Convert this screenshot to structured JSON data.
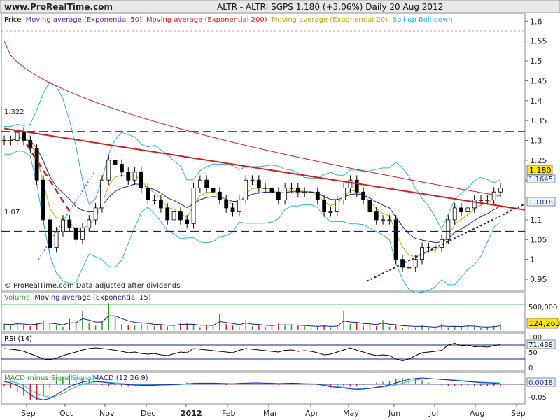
{
  "header": {
    "site": "www.ProRealTime.com",
    "title": "ALTR - ALTRI SGPS    1.180 (+3.06%)    Daily  20 Aug 2012"
  },
  "footer": {
    "credit": "© ProRealTime.com Data adjusted after dividends"
  },
  "colors": {
    "price": "#000000",
    "ema50": "#1a1aa0",
    "ema200": "#d21e1e",
    "ema20": "#c8a800",
    "bollinger": "#22b8d8",
    "volume_up": "#2aa02a",
    "volume_down": "#d22020",
    "rsi": "#000000",
    "macd": "#2020c0"
  },
  "chart_data": [
    {
      "type": "line",
      "title": "",
      "legend": [
        {
          "text": "Price",
          "color": "#000000"
        },
        {
          "text": "Moving average (Exponential 50)",
          "color": "#6a2aa0"
        },
        {
          "text": "Moving average (Exponential 200)",
          "color": "#d21e1e"
        },
        {
          "text": "Moving average (Exponential 20)",
          "color": "#c8a800"
        },
        {
          "text": "Boll up Boll down",
          "color": "#22b8d8"
        }
      ],
      "x_tick_labels": [
        "Sep",
        "Oct",
        "Nov",
        "Dec",
        "2012",
        "Feb",
        "Mar",
        "Apr",
        "May",
        "Jun",
        "Jul",
        "Aug",
        "Sep"
      ],
      "y_tick_labels": [
        "1.6",
        "1.55",
        "1.5",
        "1.45",
        "1.4",
        "1.35",
        "1.3",
        "1.25",
        "1.2",
        "1.15",
        "1.1",
        "1.05",
        "1",
        "0.95"
      ],
      "ylim": [
        0.92,
        1.62
      ],
      "series": [
        {
          "name": "Price",
          "values": [
            1.3,
            1.3,
            1.32,
            1.3,
            1.28,
            1.2,
            1.1,
            1.03,
            1.07,
            1.1,
            1.08,
            1.05,
            1.08,
            1.1,
            1.13,
            1.2,
            1.25,
            1.24,
            1.22,
            1.2,
            1.22,
            1.18,
            1.15,
            1.15,
            1.13,
            1.1,
            1.12,
            1.1,
            1.09,
            1.18,
            1.2,
            1.18,
            1.17,
            1.15,
            1.13,
            1.12,
            1.15,
            1.2,
            1.2,
            1.18,
            1.18,
            1.17,
            1.15,
            1.18,
            1.18,
            1.17,
            1.17,
            1.17,
            1.15,
            1.12,
            1.12,
            1.15,
            1.18,
            1.2,
            1.17,
            1.15,
            1.12,
            1.1,
            1.1,
            1.1,
            1.0,
            0.98,
            0.98,
            1.0,
            1.03,
            1.03,
            1.03,
            1.05,
            1.1,
            1.13,
            1.12,
            1.13,
            1.15,
            1.15,
            1.15,
            1.17,
            1.18
          ],
          "annotations": [
            "1.322",
            "1.07",
            "1.180",
            "1.1645",
            "1.1018"
          ]
        }
      ],
      "last_value_labels": [
        "1.180",
        "1.1645",
        "1.1018"
      ],
      "level_labels": [
        "1.322",
        "1.07"
      ]
    },
    {
      "type": "bar",
      "title": "",
      "legend": [
        {
          "text": "Volume",
          "color": "#2aa02a"
        },
        {
          "text": "Moving average (Exponential 15)",
          "color": "#1a1aa0"
        }
      ],
      "y_tick_labels": [
        "500,000"
      ],
      "last_value": "124,263",
      "ylim": [
        0,
        700000
      ],
      "volumes": [
        120000,
        90000,
        160000,
        110000,
        80000,
        140000,
        190000,
        130000,
        100000,
        70000,
        220000,
        150000,
        380000,
        140000,
        90000,
        160000,
        520000,
        280000,
        120000,
        100000,
        90000,
        130000,
        110000,
        80000,
        100000,
        70000,
        90000,
        150000,
        130000,
        110000,
        60000,
        95000,
        85000,
        320000,
        120000,
        90000,
        70000,
        200000,
        80000,
        100000,
        65000,
        75000,
        130000,
        110000,
        100000,
        90000,
        80000,
        60000,
        70000,
        95000,
        60000,
        90000,
        380000,
        120000,
        140000,
        90000,
        110000,
        80000,
        200000,
        70000,
        90000,
        50000,
        70000,
        60000,
        90000,
        50000,
        40000,
        130000,
        60000,
        80000,
        65000,
        110000,
        70000,
        40000,
        60000,
        85000,
        120000
      ]
    },
    {
      "type": "line",
      "title": "",
      "legend": [
        {
          "text": "RSI (14)",
          "color": "#000000"
        }
      ],
      "y_tick_labels": [
        "100",
        "50",
        "0"
      ],
      "last_value": "71.438",
      "ylim": [
        0,
        100
      ],
      "values": [
        60,
        58,
        56,
        52,
        45,
        38,
        30,
        28,
        32,
        40,
        45,
        50,
        56,
        60,
        62,
        60,
        58,
        55,
        52,
        48,
        50,
        46,
        44,
        46,
        42,
        40,
        45,
        50,
        48,
        60,
        58,
        56,
        54,
        52,
        50,
        48,
        55,
        60,
        58,
        56,
        54,
        52,
        50,
        55,
        56,
        52,
        54,
        52,
        48,
        42,
        44,
        50,
        56,
        62,
        55,
        50,
        44,
        40,
        42,
        40,
        30,
        25,
        30,
        40,
        48,
        50,
        52,
        55,
        70,
        75,
        68,
        70,
        65,
        66,
        64,
        68,
        71.4
      ]
    },
    {
      "type": "line",
      "title": "",
      "legend": [
        {
          "text": "MACD minus Signal",
          "color": "#2aa02a"
        },
        {
          "text": "Signal",
          "color": "#22b8d8"
        },
        {
          "text": "MACD (12 26 9)",
          "color": "#1a1aa0"
        }
      ],
      "y_tick_labels": [
        "-0.05"
      ],
      "last_value": "0.0018",
      "ylim": [
        -0.07,
        0.04
      ],
      "macd": [
        0.01,
        0.005,
        -0.005,
        -0.02,
        -0.04,
        -0.055,
        -0.06,
        -0.055,
        -0.04,
        -0.025,
        -0.01,
        0.0,
        0.008,
        0.012,
        0.01,
        0.008,
        0.005,
        0.002,
        0.0,
        -0.002,
        -0.003,
        -0.004,
        -0.005,
        -0.004,
        -0.003,
        -0.002,
        -0.001,
        0.0,
        0.002,
        0.003,
        0.004,
        0.004,
        0.004,
        0.003,
        0.002,
        0.002,
        0.003,
        0.004,
        0.005,
        0.005,
        0.004,
        0.003,
        0.002,
        0.003,
        0.004,
        0.003,
        0.002,
        0.001,
        0.0,
        -0.005,
        -0.01,
        -0.012,
        -0.015,
        -0.018,
        -0.02,
        -0.019,
        -0.016,
        -0.012,
        -0.008,
        -0.003,
        0.005,
        0.012,
        0.018,
        0.022,
        0.024,
        0.022,
        0.02,
        0.018,
        0.016,
        0.014,
        0.012,
        0.01,
        0.008,
        0.006,
        0.005,
        0.004,
        0.0018
      ],
      "signal": [
        0.012,
        0.01,
        0.005,
        -0.005,
        -0.02,
        -0.035,
        -0.045,
        -0.05,
        -0.045,
        -0.035,
        -0.022,
        -0.01,
        0.0,
        0.006,
        0.009,
        0.009,
        0.007,
        0.005,
        0.003,
        0.001,
        -0.001,
        -0.002,
        -0.003,
        -0.003,
        -0.003,
        -0.002,
        -0.002,
        -0.001,
        0.0,
        0.001,
        0.002,
        0.003,
        0.003,
        0.003,
        0.003,
        0.002,
        0.003,
        0.003,
        0.004,
        0.004,
        0.004,
        0.004,
        0.003,
        0.003,
        0.003,
        0.003,
        0.002,
        0.002,
        0.001,
        -0.002,
        -0.006,
        -0.009,
        -0.012,
        -0.015,
        -0.017,
        -0.018,
        -0.017,
        -0.014,
        -0.011,
        -0.007,
        -0.002,
        0.004,
        0.01,
        0.015,
        0.019,
        0.02,
        0.02,
        0.019,
        0.018,
        0.016,
        0.014,
        0.012,
        0.01,
        0.008,
        0.007,
        0.006,
        0.005
      ]
    }
  ]
}
